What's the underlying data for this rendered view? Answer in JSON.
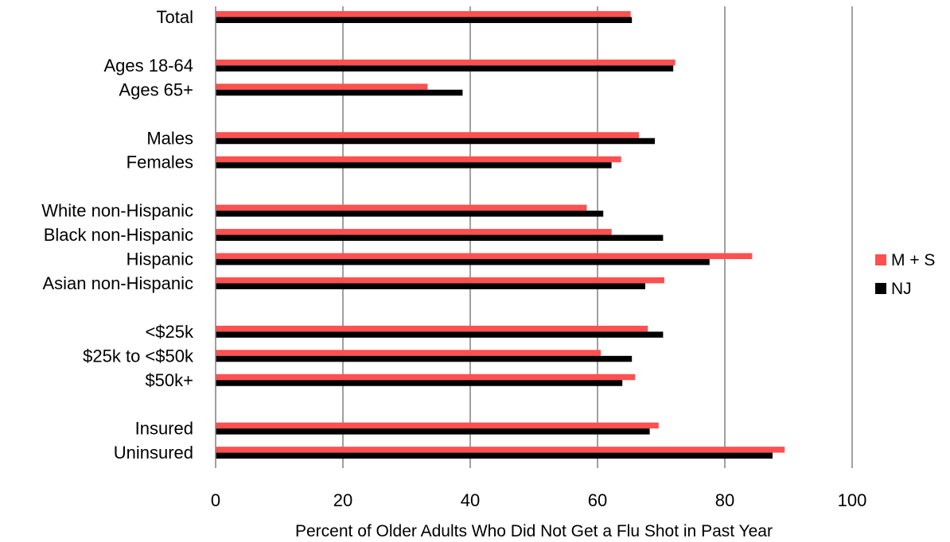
{
  "chart_data": {
    "type": "bar",
    "orientation": "horizontal",
    "xlabel": "Percent of Older Adults Who Did Not Get a Flu Shot in Past Year",
    "xlim": [
      0,
      100
    ],
    "xticks": [
      "0",
      "20",
      "40",
      "60",
      "80",
      "100"
    ],
    "grid": true,
    "legend_position": "right",
    "categories": [
      "Total",
      "Ages 18-64",
      "Ages 65+",
      "Males",
      "Females",
      "White non-Hispanic",
      "Black non-Hispanic",
      "Hispanic",
      "Asian non-Hispanic",
      "<$25k",
      "$25k to <$50k",
      "$50k+",
      "Insured",
      "Uninsured"
    ],
    "series": [
      {
        "name": "M + S",
        "color": "#ff5050",
        "values": [
          65.2,
          72.2,
          33.3,
          66.5,
          63.7,
          58.3,
          62.2,
          84.3,
          70.5,
          67.9,
          60.5,
          65.9,
          69.6,
          89.4
        ]
      },
      {
        "name": "NJ",
        "color": "#000000",
        "values": [
          65.4,
          71.9,
          38.8,
          69.0,
          62.2,
          60.9,
          70.3,
          77.6,
          67.5,
          70.3,
          65.4,
          63.9,
          68.2,
          87.5
        ]
      }
    ]
  }
}
